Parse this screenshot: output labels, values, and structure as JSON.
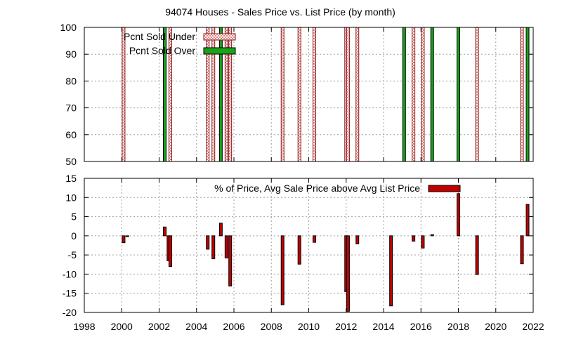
{
  "title": "94074 Houses - Sales Price vs. List Price (by month)",
  "colors": {
    "sold_under_fill": "#f4c4c4",
    "sold_under_stroke": "#8b1a1a",
    "sold_over_fill": "#1aa31a",
    "avg_price_fill": "#c00000",
    "grid": "#a0a0a0"
  },
  "chart_data": [
    {
      "type": "bar",
      "panel": "top",
      "ylim": [
        50,
        100
      ],
      "yticks": [
        50,
        60,
        70,
        80,
        90,
        100
      ],
      "xlim": [
        1998,
        2022
      ],
      "grid": true,
      "legend_position": "top-left",
      "series": [
        {
          "name": "Pcnt Sold Under",
          "x": [
            2000.1,
            2002.6,
            2004.6,
            2004.9,
            2005.6,
            2005.8,
            2008.6,
            2009.5,
            2010.3,
            2012.0,
            2012.1,
            2012.6,
            2015.6,
            2016.1,
            2019.0,
            2021.4
          ],
          "values": [
            100,
            100,
            100,
            100,
            100,
            100,
            100,
            100,
            100,
            100,
            100,
            100,
            100,
            100,
            100,
            100
          ]
        },
        {
          "name": "Pcnt Sold Over",
          "x": [
            2002.3,
            2005.3,
            2015.1,
            2016.6,
            2018.0,
            2021.7
          ],
          "values": [
            100,
            100,
            100,
            100,
            100,
            100
          ]
        }
      ]
    },
    {
      "type": "bar",
      "panel": "bottom",
      "ylim": [
        -20,
        15
      ],
      "yticks": [
        -20,
        -15,
        -10,
        -5,
        0,
        5,
        10,
        15
      ],
      "xlim": [
        1998,
        2022
      ],
      "xticks": [
        1998,
        2000,
        2002,
        2004,
        2006,
        2008,
        2010,
        2012,
        2014,
        2016,
        2018,
        2020,
        2022
      ],
      "grid": true,
      "legend_position": "top-right",
      "series": [
        {
          "name": "% of Price, Avg Sale Price above Avg List Price",
          "x": [
            2000.1,
            2000.3,
            2002.3,
            2002.5,
            2002.6,
            2004.6,
            2004.9,
            2005.3,
            2005.6,
            2005.8,
            2008.6,
            2009.5,
            2010.3,
            2012.0,
            2012.1,
            2012.6,
            2014.4,
            2015.6,
            2016.1,
            2016.6,
            2018.0,
            2019.0,
            2021.4,
            2021.7
          ],
          "values": [
            -1.8,
            -0.2,
            2.3,
            -6.5,
            -8.0,
            -3.5,
            -6.0,
            3.3,
            -5.8,
            -13.1,
            -18.0,
            -7.4,
            -1.7,
            -14.6,
            -19.7,
            -2.1,
            -18.3,
            -1.4,
            -3.2,
            0.3,
            11.0,
            -10.1,
            -7.3,
            8.2
          ]
        }
      ]
    }
  ]
}
